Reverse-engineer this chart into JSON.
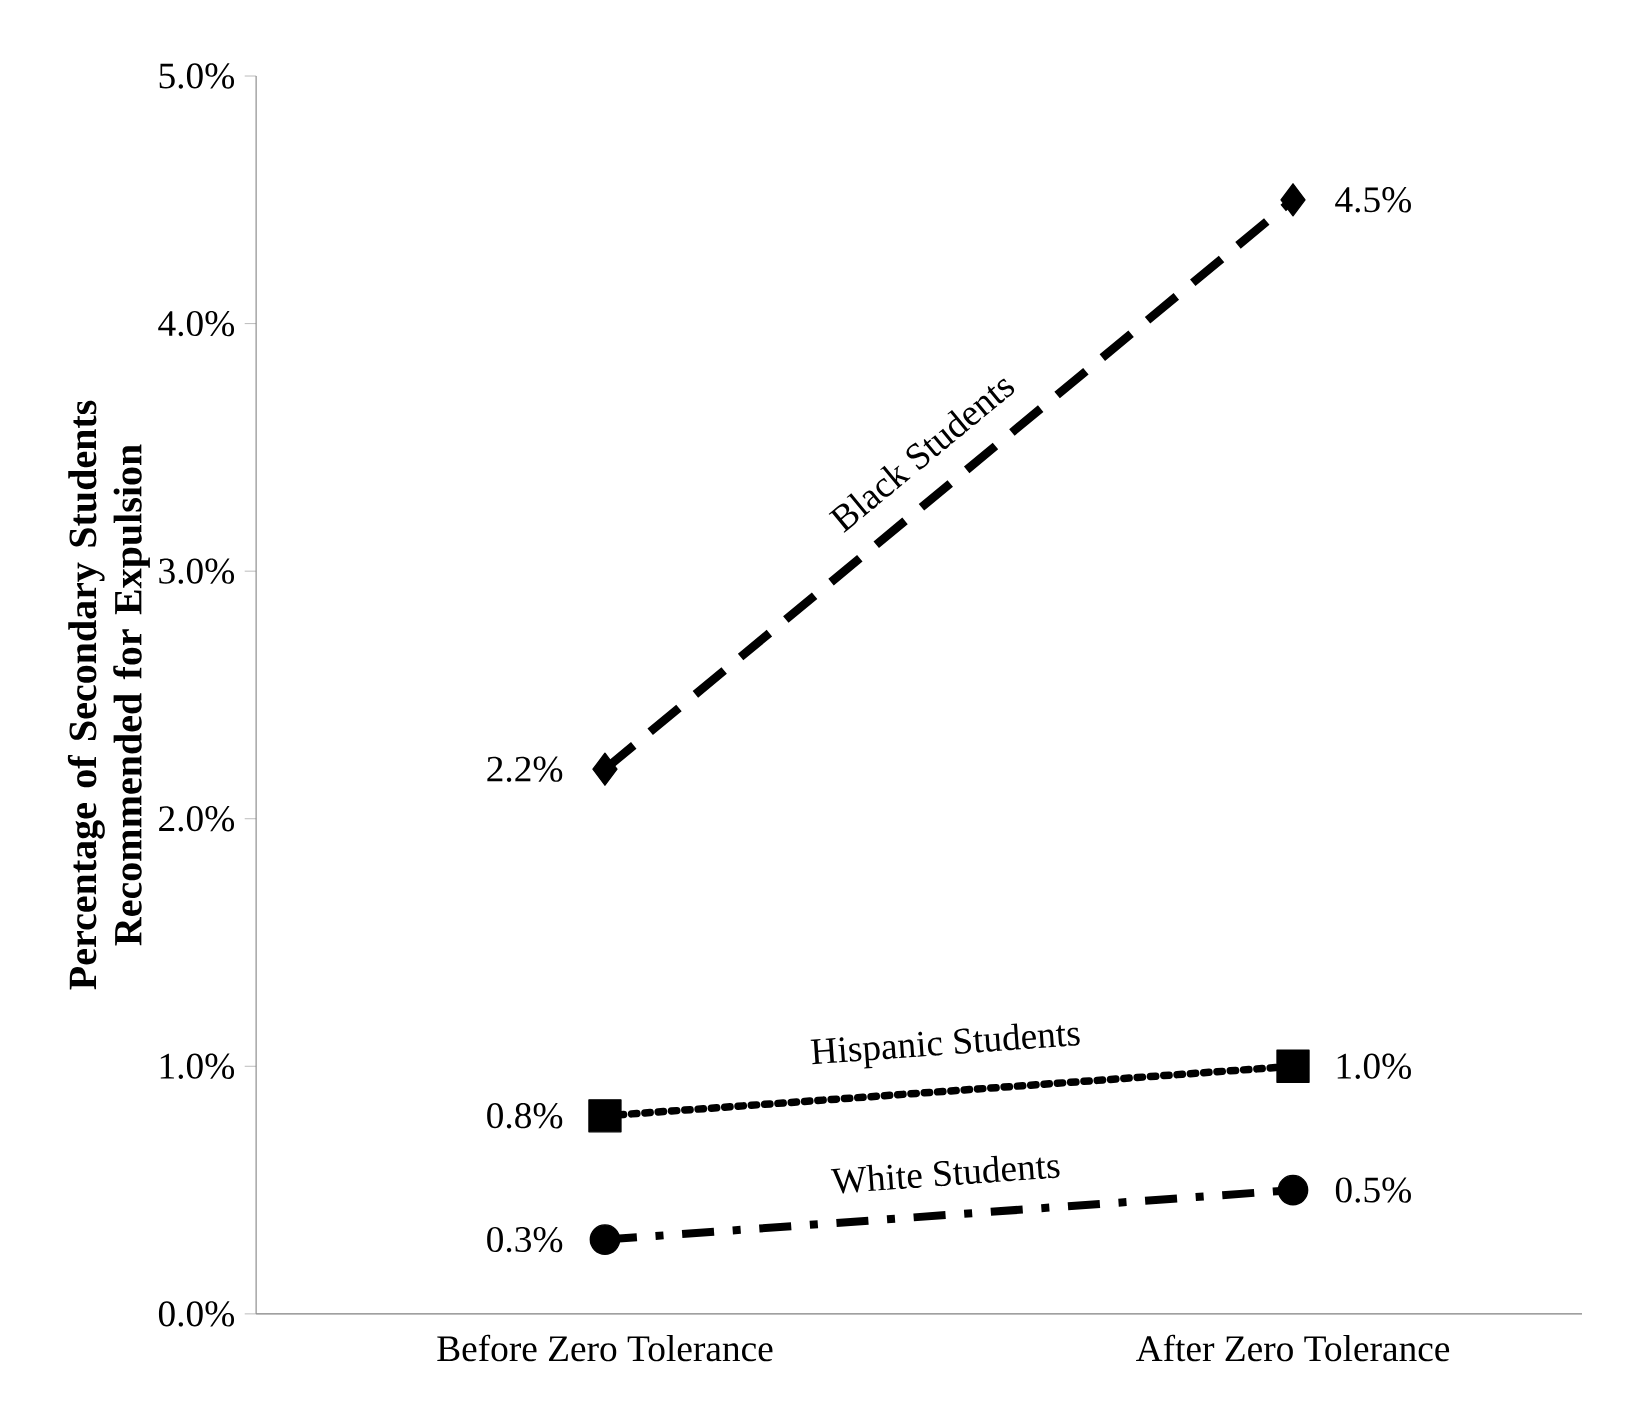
{
  "chart_data": {
    "type": "line",
    "ylabel": "Percentage of Secondary Students Recommended for Expulsion",
    "categories": [
      "Before Zero Tolerance",
      "After Zero Tolerance"
    ],
    "ylim": [
      0,
      5
    ],
    "yticks": [
      {
        "value": 0,
        "label": "0.0%"
      },
      {
        "value": 1,
        "label": "1.0%"
      },
      {
        "value": 2,
        "label": "2.0%"
      },
      {
        "value": 3,
        "label": "3.0%"
      },
      {
        "value": 4,
        "label": "4.0%"
      },
      {
        "value": 5,
        "label": "5.0%"
      }
    ],
    "grid": false,
    "series": [
      {
        "name": "Black Students",
        "color": "#000000",
        "values": [
          2.2,
          4.5
        ],
        "value_labels": [
          "2.2%",
          "4.5%"
        ],
        "marker": "diamond",
        "line_style": "dashed"
      },
      {
        "name": "Hispanic Students",
        "color": "#000000",
        "values": [
          0.8,
          1.0
        ],
        "value_labels": [
          "0.8%",
          "1.0%"
        ],
        "marker": "square",
        "line_style": "dotted"
      },
      {
        "name": "White Students",
        "color": "#000000",
        "values": [
          0.3,
          0.5
        ],
        "value_labels": [
          "0.3%",
          "0.5%"
        ],
        "marker": "circle",
        "line_style": "dashdot"
      }
    ]
  }
}
